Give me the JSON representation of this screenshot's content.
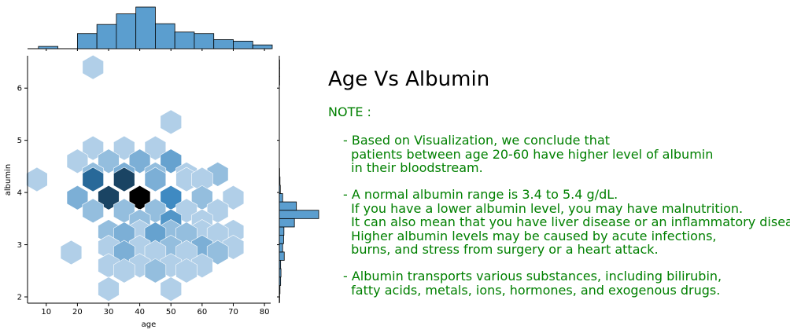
{
  "chart_data": {
    "type": "hexbin",
    "xlabel": "age",
    "ylabel": "albumin",
    "xlim": [
      4,
      82
    ],
    "ylim": [
      1.88,
      6.62
    ],
    "xticks": [
      10,
      20,
      30,
      40,
      50,
      60,
      70,
      80
    ],
    "yticks": [
      2,
      3,
      4,
      5,
      6
    ],
    "hexbins": [
      {
        "x": 25,
        "y": 6.4,
        "count": 1
      },
      {
        "x": 50,
        "y": 5.35,
        "count": 1
      },
      {
        "x": 25,
        "y": 4.85,
        "count": 1
      },
      {
        "x": 35,
        "y": 4.85,
        "count": 1
      },
      {
        "x": 45,
        "y": 4.85,
        "count": 1
      },
      {
        "x": 20,
        "y": 4.6,
        "count": 1
      },
      {
        "x": 30,
        "y": 4.6,
        "count": 2
      },
      {
        "x": 40,
        "y": 4.6,
        "count": 3
      },
      {
        "x": 50,
        "y": 4.6,
        "count": 4
      },
      {
        "x": 25,
        "y": 4.35,
        "count": 2
      },
      {
        "x": 35,
        "y": 4.35,
        "count": 3
      },
      {
        "x": 45,
        "y": 4.35,
        "count": 2
      },
      {
        "x": 55,
        "y": 4.35,
        "count": 1
      },
      {
        "x": 65,
        "y": 4.35,
        "count": 2
      },
      {
        "x": 7,
        "y": 4.25,
        "count": 1
      },
      {
        "x": 25,
        "y": 4.25,
        "count": 8
      },
      {
        "x": 35,
        "y": 4.25,
        "count": 10
      },
      {
        "x": 45,
        "y": 4.25,
        "count": 3
      },
      {
        "x": 55,
        "y": 4.25,
        "count": 1
      },
      {
        "x": 60,
        "y": 4.25,
        "count": 1
      },
      {
        "x": 20,
        "y": 3.9,
        "count": 3
      },
      {
        "x": 30,
        "y": 3.9,
        "count": 10
      },
      {
        "x": 40,
        "y": 3.9,
        "count": 14
      },
      {
        "x": 50,
        "y": 3.9,
        "count": 6
      },
      {
        "x": 60,
        "y": 3.9,
        "count": 2
      },
      {
        "x": 70,
        "y": 3.9,
        "count": 1
      },
      {
        "x": 25,
        "y": 3.65,
        "count": 2
      },
      {
        "x": 35,
        "y": 3.65,
        "count": 2
      },
      {
        "x": 45,
        "y": 3.65,
        "count": 2
      },
      {
        "x": 55,
        "y": 3.65,
        "count": 1
      },
      {
        "x": 65,
        "y": 3.65,
        "count": 1
      },
      {
        "x": 40,
        "y": 3.45,
        "count": 2
      },
      {
        "x": 50,
        "y": 3.45,
        "count": 5
      },
      {
        "x": 60,
        "y": 3.45,
        "count": 1
      },
      {
        "x": 30,
        "y": 3.25,
        "count": 2
      },
      {
        "x": 40,
        "y": 3.25,
        "count": 1
      },
      {
        "x": 50,
        "y": 3.25,
        "count": 2
      },
      {
        "x": 60,
        "y": 3.25,
        "count": 1
      },
      {
        "x": 70,
        "y": 3.25,
        "count": 1
      },
      {
        "x": 35,
        "y": 3.2,
        "count": 3
      },
      {
        "x": 45,
        "y": 3.2,
        "count": 4
      },
      {
        "x": 55,
        "y": 3.2,
        "count": 2
      },
      {
        "x": 65,
        "y": 3.2,
        "count": 1
      },
      {
        "x": 30,
        "y": 2.95,
        "count": 1
      },
      {
        "x": 40,
        "y": 2.95,
        "count": 1
      },
      {
        "x": 50,
        "y": 2.95,
        "count": 2
      },
      {
        "x": 60,
        "y": 2.95,
        "count": 3
      },
      {
        "x": 70,
        "y": 2.95,
        "count": 1
      },
      {
        "x": 18,
        "y": 2.85,
        "count": 1
      },
      {
        "x": 35,
        "y": 2.85,
        "count": 3
      },
      {
        "x": 45,
        "y": 2.85,
        "count": 1
      },
      {
        "x": 55,
        "y": 2.85,
        "count": 1
      },
      {
        "x": 65,
        "y": 2.85,
        "count": 2
      },
      {
        "x": 30,
        "y": 2.6,
        "count": 1
      },
      {
        "x": 40,
        "y": 2.6,
        "count": 1
      },
      {
        "x": 50,
        "y": 2.6,
        "count": 1
      },
      {
        "x": 60,
        "y": 2.6,
        "count": 1
      },
      {
        "x": 35,
        "y": 2.5,
        "count": 1
      },
      {
        "x": 45,
        "y": 2.5,
        "count": 2
      },
      {
        "x": 55,
        "y": 2.5,
        "count": 1
      },
      {
        "x": 30,
        "y": 2.15,
        "count": 1
      },
      {
        "x": 50,
        "y": 2.15,
        "count": 1
      }
    ],
    "marginal_x_histogram": {
      "bin_edges": [
        7.5,
        13.75,
        20,
        26.25,
        32.5,
        38.75,
        45,
        51.25,
        57.5,
        63.75,
        70,
        76.25,
        82.5
      ],
      "counts": [
        3,
        0,
        20,
        32,
        46,
        55,
        33,
        22,
        20,
        12,
        10,
        5
      ]
    },
    "marginal_y_histogram": {
      "bin_edges": [
        1.9,
        2.06,
        2.22,
        2.38,
        2.54,
        2.7,
        2.86,
        3.02,
        3.18,
        3.34,
        3.5,
        3.66,
        3.82,
        3.98,
        4.14,
        4.3,
        4.46,
        4.62,
        4.78,
        4.94,
        5.1,
        5.26,
        5.42,
        5.58,
        5.74,
        5.9,
        6.06,
        6.22,
        6.38,
        6.54
      ],
      "counts": [
        1,
        2,
        4,
        5,
        4,
        15,
        10,
        13,
        14,
        46,
        120,
        52,
        10,
        3,
        2,
        1,
        0,
        0,
        0,
        0,
        0,
        0,
        0,
        0,
        0,
        0,
        1,
        1,
        1
      ]
    }
  },
  "text": {
    "title": "Age Vs Albumin",
    "note_heading": "NOTE :",
    "paragraphs": [
      "- Based on Visualization, we conclude that\n  patients between age 20-60 have higher level of albumin\n  in their bloodstream.",
      "- A normal albumin range is 3.4 to 5.4 g/dL.\n  If you have a lower albumin level, you may have malnutrition.\n  It can also mean that you have liver disease or an inflammatory disease.\n  Higher albumin levels may be caused by acute infections,\n  burns, and stress from surgery or a heart attack.",
      "- Albumin transports various substances, including bilirubin,\n  fatty acids, metals, ions, hormones, and exogenous drugs."
    ]
  },
  "colors": {
    "hex_low": "#deebf7",
    "hex_high": "#000000",
    "histogram": "#5b9ecf",
    "note_text": "#008000"
  }
}
